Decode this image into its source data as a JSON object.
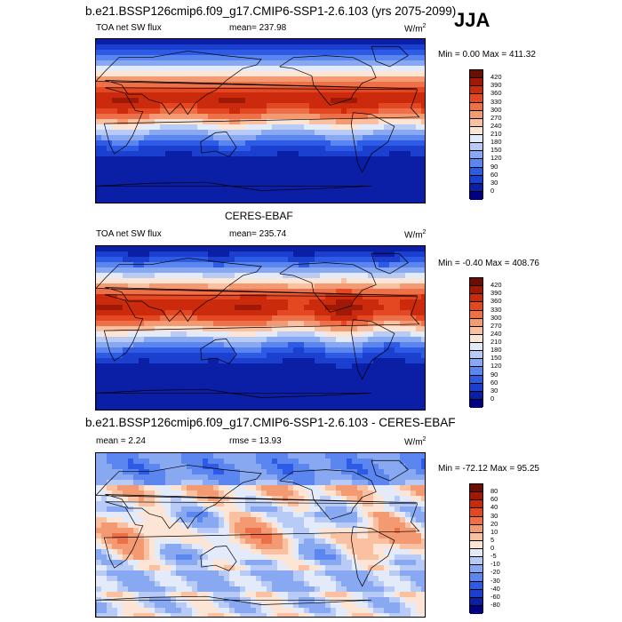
{
  "season": "JJA",
  "panels": [
    {
      "title": "b.e21.BSSP126cmip6.f09_g17.CMIP6-SSP1-2.6.103 (yrs 2075-2099)",
      "left_label": "TOA net SW flux",
      "mid_label": "mean= 237.98",
      "units": "W/m",
      "units_sup": "2",
      "minmax": "Min =   0.00 Max = 411.32",
      "colorbar_ticks": [
        "420",
        "390",
        "360",
        "330",
        "300",
        "270",
        "240",
        "210",
        "180",
        "150",
        "120",
        "90",
        "60",
        "30",
        "0"
      ]
    },
    {
      "title": "CERES-EBAF",
      "left_label": "TOA net SW flux",
      "mid_label": "mean= 235.74",
      "units": "W/m",
      "units_sup": "2",
      "minmax": "Min =  -0.40 Max = 408.76",
      "colorbar_ticks": [
        "420",
        "390",
        "360",
        "330",
        "300",
        "270",
        "240",
        "210",
        "180",
        "150",
        "120",
        "90",
        "60",
        "30",
        "0"
      ]
    },
    {
      "title": "b.e21.BSSP126cmip6.f09_g17.CMIP6-SSP1-2.6.103 - CERES-EBAF",
      "left_label": "mean =   2.24",
      "mid_label": "rmse =  13.93",
      "units": "W/m",
      "units_sup": "2",
      "minmax": "Min = -72.12 Max =  95.25",
      "colorbar_ticks": [
        "80",
        "60",
        "40",
        "30",
        "20",
        "10",
        "5",
        "0",
        "-5",
        "-10",
        "-20",
        "-30",
        "-40",
        "-60",
        "-80"
      ]
    }
  ],
  "chart_data": [
    {
      "type": "heatmap",
      "title": "b.e21.BSSP126cmip6.f09_g17.CMIP6-SSP1-2.6.103 (yrs 2075-2099)",
      "variable": "TOA net SW flux",
      "mean": 237.98,
      "min": 0.0,
      "max": 411.32,
      "colorbar_levels": [
        0,
        30,
        60,
        90,
        120,
        150,
        180,
        210,
        240,
        270,
        300,
        330,
        360,
        390,
        420
      ],
      "colors": [
        "#000080",
        "#0a1ea6",
        "#1b3fcf",
        "#2e5be6",
        "#5b86ef",
        "#89a8f2",
        "#b7cbf6",
        "#e3ebfb",
        "#fde5d6",
        "#f9c1a2",
        "#f49a73",
        "#ee7049",
        "#e44822",
        "#cc2a0c",
        "#a01806",
        "#6e0e02"
      ]
    },
    {
      "type": "heatmap",
      "title": "CERES-EBAF",
      "variable": "TOA net SW flux",
      "mean": 235.74,
      "min": -0.4,
      "max": 408.76,
      "colorbar_levels": [
        0,
        30,
        60,
        90,
        120,
        150,
        180,
        210,
        240,
        270,
        300,
        330,
        360,
        390,
        420
      ],
      "colors": [
        "#000080",
        "#0a1ea6",
        "#1b3fcf",
        "#2e5be6",
        "#5b86ef",
        "#89a8f2",
        "#b7cbf6",
        "#e3ebfb",
        "#fde5d6",
        "#f9c1a2",
        "#f49a73",
        "#ee7049",
        "#e44822",
        "#cc2a0c",
        "#a01806",
        "#6e0e02"
      ]
    },
    {
      "type": "heatmap",
      "title": "b.e21.BSSP126cmip6.f09_g17.CMIP6-SSP1-2.6.103 - CERES-EBAF",
      "mean": 2.24,
      "rmse": 13.93,
      "min": -72.12,
      "max": 95.25,
      "colorbar_levels": [
        -80,
        -60,
        -40,
        -30,
        -20,
        -10,
        -5,
        0,
        5,
        10,
        20,
        30,
        40,
        60,
        80
      ],
      "colors": [
        "#000080",
        "#0a1ea6",
        "#1b3fcf",
        "#2e5be6",
        "#5b86ef",
        "#89a8f2",
        "#b7cbf6",
        "#e3ebfb",
        "#fde5d6",
        "#f9c1a2",
        "#f49a73",
        "#ee7049",
        "#e44822",
        "#cc2a0c",
        "#a01806",
        "#6e0e02"
      ]
    }
  ]
}
